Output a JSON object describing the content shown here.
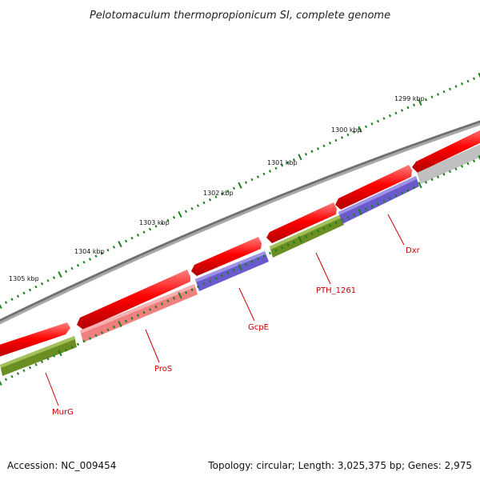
{
  "title": "Pelotomaculum thermopropionicum SI, complete genome",
  "footer": {
    "accession": "Accession: NC_009454",
    "summary": "Topology: circular; Length: 3,025,375 bp; Genes: 2,975"
  },
  "scale_labels": [
    "1305 kbp",
    "1304 kbp",
    "1303 kbp",
    "1302 kbp",
    "1301 kbp",
    "1300 kbp",
    "1299 kbp"
  ],
  "gene_labels": [
    "MurG",
    "ProS",
    "GcpE",
    "PTH_1261",
    "Dxr"
  ],
  "colors": {
    "backbone": "#7a7a7a",
    "forward_gene": "#ee0000",
    "murg": "#6b8e23",
    "pros": "#f08080",
    "gcpe": "#6a5acd",
    "pth": "#6b8e23",
    "dxr": "#6a5acd",
    "trailing": "#c0c0c0",
    "ticks": "#1a7f1a",
    "label": "#cc0000"
  }
}
